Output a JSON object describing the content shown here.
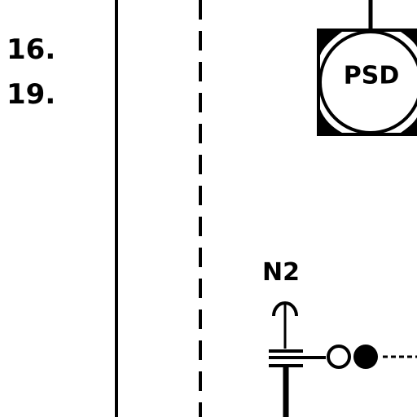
{
  "labels": {
    "ref_a": "16.",
    "ref_b": "19.",
    "psd": "PSD",
    "n2": "N2"
  }
}
